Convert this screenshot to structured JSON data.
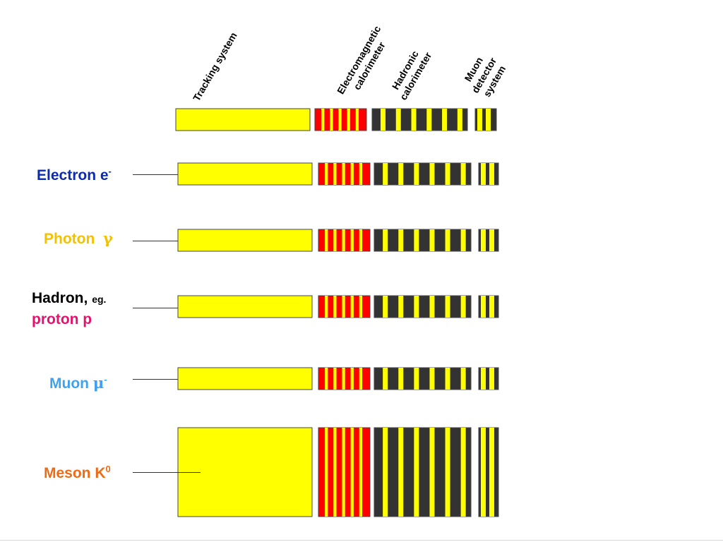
{
  "headers": {
    "tracking": "Tracking system",
    "em_calorimeter": [
      "Electromagnetic",
      "calorimeter"
    ],
    "hadronic_calorimeter": [
      "Hadronic",
      "calorimeter"
    ],
    "muon_system": [
      "Muon",
      "detector",
      "system"
    ]
  },
  "particles": {
    "electron": {
      "name": "Electron e",
      "sup": "-",
      "color": "#0c2bb0"
    },
    "photon": {
      "name": "Photon",
      "symbol": "γ",
      "color": "#f2c200"
    },
    "hadron": {
      "name": "Hadron,",
      "note": "eg.",
      "line2": "proton p",
      "color": "#000000",
      "line2_color": "#e8106e"
    },
    "muon": {
      "name": "Muon",
      "symbol": "μ",
      "sup": "-",
      "color": "#3fa2ee"
    },
    "meson": {
      "name": "Meson K",
      "sup": "0",
      "color": "#ee6a14"
    }
  },
  "colors": {
    "tracking": "#ffff00",
    "em_stripe": "#ff0000",
    "hadronic_base": "#333333",
    "outline": "#444444"
  }
}
